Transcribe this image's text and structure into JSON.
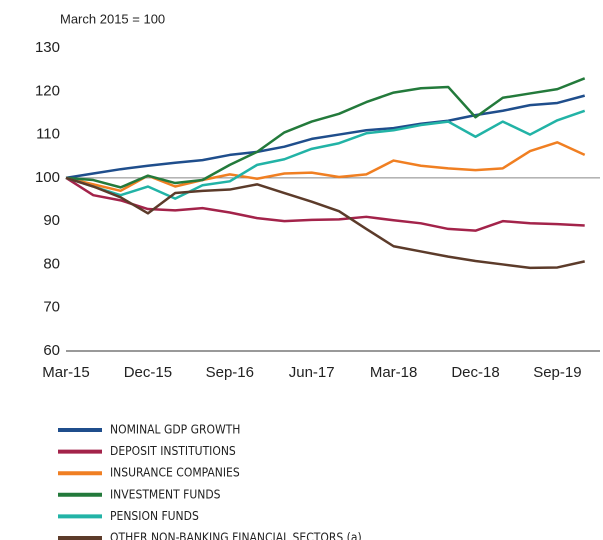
{
  "chart_data": {
    "type": "line",
    "subtitle": "March 2015 = 100",
    "categories": [
      "Mar-15",
      null,
      null,
      "Dec-15",
      null,
      null,
      "Sep-16",
      null,
      null,
      "Jun-17",
      null,
      null,
      "Mar-18",
      null,
      null,
      "Dec-18",
      null,
      null,
      "Sep-19",
      null
    ],
    "series": [
      {
        "name": "NOMINAL GDP GROWTH",
        "color": "#1f4e8c",
        "values": [
          100,
          101,
          102,
          102.8,
          103.5,
          104.1,
          105.3,
          106,
          107.2,
          109,
          110,
          111,
          111.5,
          112.5,
          113.2,
          114.5,
          115.5,
          116.8,
          117.3,
          119
        ]
      },
      {
        "name": "DEPOSIT INSTITUTIONS",
        "color": "#a3234a",
        "values": [
          100,
          96,
          94.8,
          92.8,
          92.5,
          93,
          92,
          90.7,
          90,
          90.3,
          90.4,
          91,
          90.2,
          89.5,
          88.2,
          87.8,
          90,
          89.5,
          89.3,
          89
        ]
      },
      {
        "name": "INSURANCE COMPANIES",
        "color": "#f07f22",
        "values": [
          100,
          98.5,
          97,
          100.5,
          98,
          99.5,
          100.8,
          99.8,
          101,
          101.2,
          100.2,
          100.8,
          104,
          102.8,
          102.2,
          101.8,
          102.2,
          106.2,
          108.2,
          105.3
        ]
      },
      {
        "name": "INVESTMENT FUNDS",
        "color": "#237a3b",
        "values": [
          100,
          99.5,
          97.8,
          100.5,
          98.8,
          99.5,
          103,
          106,
          110.5,
          113,
          114.8,
          117.5,
          119.7,
          120.7,
          121,
          114,
          118.5,
          119.5,
          120.5,
          123
        ]
      },
      {
        "name": "PENSION FUNDS",
        "color": "#22b3a6",
        "values": [
          100,
          98,
          96,
          98,
          95.2,
          98.3,
          99.2,
          103,
          104.3,
          106.7,
          108,
          110.3,
          111,
          112.2,
          113,
          109.5,
          113,
          110,
          113.3,
          115.5
        ]
      },
      {
        "name": "OTHER NON-BANKING FINANCIAL SECTORS (a)",
        "color": "#5c3b2a",
        "values": [
          100,
          98,
          95.5,
          91.8,
          96.5,
          97,
          97.3,
          98.5,
          96.5,
          94.5,
          92.3,
          88.2,
          84.2,
          83,
          81.8,
          80.8,
          80,
          79.2,
          79.3,
          80.7
        ]
      }
    ],
    "ylim": [
      60,
      130
    ],
    "yticks": [
      60,
      70,
      80,
      90,
      100,
      110,
      120,
      130
    ],
    "hline": 100
  }
}
